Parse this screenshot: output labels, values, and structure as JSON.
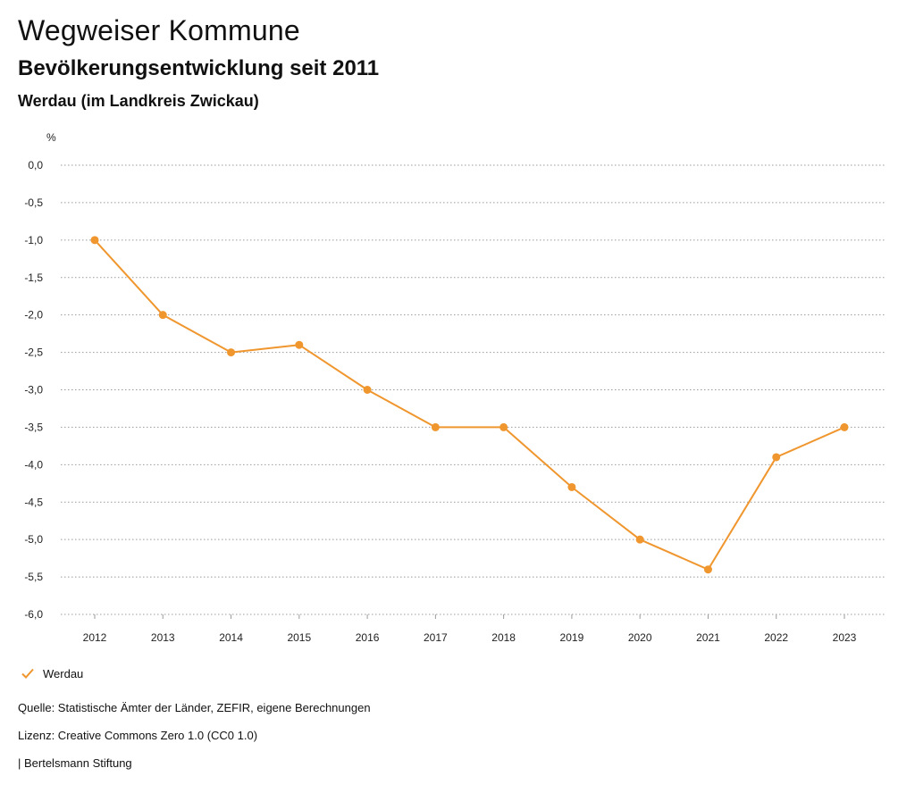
{
  "header": {
    "title": "Wegweiser Kommune",
    "subtitle": "Bevölkerungsentwicklung seit 2011",
    "region": "Werdau (im Landkreis Zwickau)"
  },
  "chart_data": {
    "type": "line",
    "title": "Bevölkerungsentwicklung seit 2011",
    "xlabel": "",
    "ylabel": "%",
    "x": [
      "2012",
      "2013",
      "2014",
      "2015",
      "2016",
      "2017",
      "2018",
      "2019",
      "2020",
      "2021",
      "2022",
      "2023"
    ],
    "series": [
      {
        "name": "Werdau",
        "color": "#f0962e",
        "values": [
          -1.0,
          -2.0,
          -2.5,
          -2.4,
          -3.0,
          -3.5,
          -3.5,
          -4.3,
          -5.0,
          -5.4,
          -3.9,
          -3.5
        ]
      }
    ],
    "yticks": [
      0.0,
      -0.5,
      -1.0,
      -1.5,
      -2.0,
      -2.5,
      -3.0,
      -3.5,
      -4.0,
      -4.5,
      -5.0,
      -5.5,
      -6.0
    ],
    "ytick_labels": [
      "0,0",
      "-0,5",
      "-1,0",
      "-1,5",
      "-2,0",
      "-2,5",
      "-3,0",
      "-3,5",
      "-4,0",
      "-4,5",
      "-5,0",
      "-5,5",
      "-6,0"
    ],
    "ylim": [
      -6.0,
      0.0
    ],
    "grid": true,
    "legend_position": "bottom-left"
  },
  "legend": {
    "label": "Werdau"
  },
  "footer": {
    "source": "Quelle: Statistische Ämter der Länder, ZEFIR, eigene Berechnungen",
    "license": "Lizenz: Creative Commons Zero 1.0 (CC0 1.0)",
    "publisher": "| Bertelsmann Stiftung"
  }
}
